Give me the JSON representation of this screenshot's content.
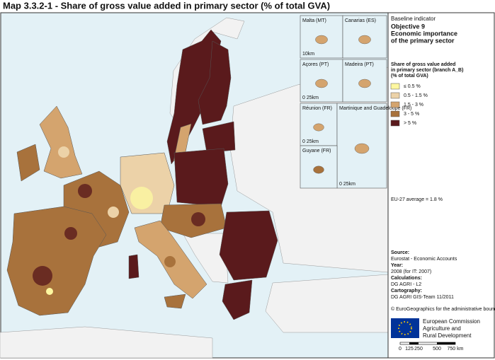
{
  "header": {
    "title": "Map 3.3.2-1 - Share of gross value added in primary sector (% of total GVA)"
  },
  "insets": [
    {
      "label": "Malta (MT)",
      "scale": "10km"
    },
    {
      "label": "Canarias (ES)"
    },
    {
      "label": "Açores (PT)",
      "scale": "0 25km"
    },
    {
      "label": "Madeira (PT)"
    },
    {
      "label": "Réunion (FR)",
      "scale": "0 25km"
    },
    {
      "label": "Martinique and Guadeloupe (FR)",
      "scale": "0 25km"
    },
    {
      "label": "Guyane (FR)"
    }
  ],
  "legend": {
    "kicker": "Baseline indicator",
    "objective": "Objective 9",
    "heading": [
      "Economic importance",
      "of the primary sector"
    ],
    "subheading": [
      "Share of gross value added",
      "in primary sector (branch A_B)",
      "(% of total GVA)"
    ],
    "items": [
      {
        "label": "≤ 0.5 %",
        "color": "#fdf7a0"
      },
      {
        "label": "0.5 - 1.5 %",
        "color": "#ecd2a8"
      },
      {
        "label": "1.5 - 3 %",
        "color": "#d4a46e"
      },
      {
        "label": "3 - 5 %",
        "color": "#a8723c"
      },
      {
        "label": "> 5 %",
        "color": "#5a1a1c"
      }
    ],
    "average": "EU-27 average = 1.8 %"
  },
  "source": {
    "lines": [
      {
        "text": "Source:",
        "head": true
      },
      {
        "text": "Eurostat - Economic Accounts"
      },
      {
        "text": "Year:",
        "head": true
      },
      {
        "text": "2008 (for IT: 2007)"
      },
      {
        "text": "Calculations:",
        "head": true
      },
      {
        "text": "DG AGRI - L2"
      },
      {
        "text": "Cartography:",
        "head": true
      },
      {
        "text": "DG AGRI GIS-Team 11/2011"
      }
    ],
    "copyright": "© EuroGeographics for the administrative boundaries"
  },
  "logo": [
    "European Commission",
    "Agriculture and",
    "Rural Development"
  ],
  "scalebar": [
    "0",
    "125",
    "250",
    "500",
    "750 km"
  ]
}
